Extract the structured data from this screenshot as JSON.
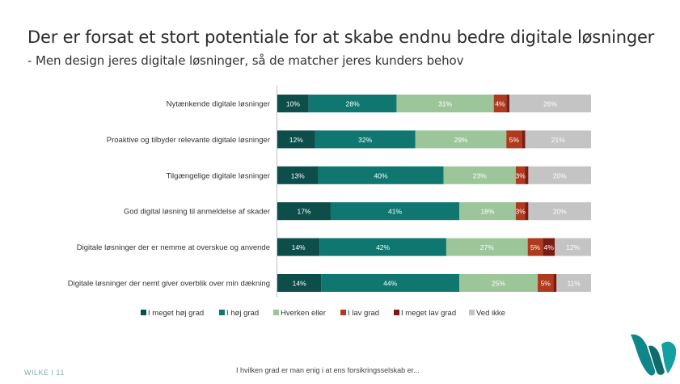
{
  "title": "Der er forsat et stort potentiale for at skabe endnu bedre digitale løsninger",
  "subtitle": "- Men design jeres digitale løsninger, så de matcher jeres kunders behov",
  "footer": {
    "page_label": "WILKE I 11",
    "caption": "I hvilken grad er man enig i at ens forsikringsselskab er..."
  },
  "colors": {
    "meget_hoj": "#0d4d4a",
    "hoj": "#0f7670",
    "hverken": "#9dc59a",
    "lav": "#b03a1e",
    "meget_lav": "#7a1c12",
    "ved_ikke": "#c4c4c4",
    "logo": "#11868a"
  },
  "chart_data": {
    "type": "bar",
    "orientation": "horizontal",
    "stacked": true,
    "xlim": [
      0,
      100
    ],
    "legend_position": "bottom",
    "categories": [
      "Nytænkende digitale løsninger",
      "Proaktive og tilbyder relevante digitale løsninger",
      "Tilgængelige digitale løsninger",
      "God digital løsning til anmeldelse af skader",
      "Digitale løsninger der er nemme at overskue og anvende",
      "Digitale løsninger der nemt giver overblik over min dækning"
    ],
    "series": [
      {
        "name": "I meget høj grad",
        "color": "#0d4d4a",
        "values": [
          10,
          12,
          13,
          17,
          14,
          14
        ],
        "labels": [
          "10%",
          "12%",
          "13%",
          "17%",
          "14%",
          "14%"
        ]
      },
      {
        "name": "I høj grad",
        "color": "#0f7670",
        "values": [
          28,
          32,
          40,
          41,
          42,
          44
        ],
        "labels": [
          "28%",
          "32%",
          "40%",
          "41%",
          "42%",
          "44%"
        ]
      },
      {
        "name": "Hverken eller",
        "color": "#9dc59a",
        "values": [
          31,
          29,
          23,
          18,
          27,
          25
        ],
        "labels": [
          "31%",
          "29%",
          "23%",
          "18%",
          "27%",
          "25%"
        ]
      },
      {
        "name": "I lav grad",
        "color": "#b03a1e",
        "values": [
          4,
          5,
          3,
          3,
          5,
          5
        ],
        "labels": [
          "4%",
          "5%",
          "3%",
          "3%",
          "5%",
          "5%"
        ]
      },
      {
        "name": "I meget lav grad",
        "color": "#7a1c12",
        "values": [
          1,
          1,
          1,
          1,
          4,
          1
        ],
        "labels": [
          "",
          "",
          "",
          "",
          "4%",
          ""
        ]
      },
      {
        "name": "Ved ikke",
        "color": "#c4c4c4",
        "values": [
          26,
          21,
          20,
          20,
          12,
          11
        ],
        "labels": [
          "26%",
          "21%",
          "20%",
          "20%",
          "12%",
          "11%"
        ]
      }
    ]
  }
}
